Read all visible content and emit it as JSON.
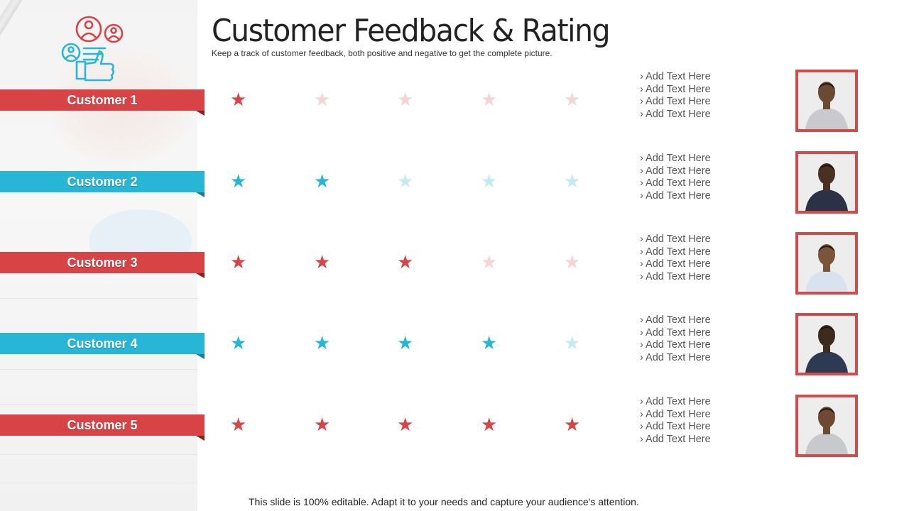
{
  "title": "Customer Feedback & Rating",
  "subtitle": "Keep a track of customer feedback, both positive and negative to get the complete picture.",
  "footer": "This slide is 100% editable. Adapt it to your needs and capture your audience's attention.",
  "colors": {
    "red": "#d84445",
    "red_faded": "#f5d4d4",
    "blue": "#27b6d5",
    "blue_faded": "#c4e9f3",
    "photo_border": "#d24b4b"
  },
  "icons": {
    "logo": "customer-feedback-thumbs-up-icon",
    "star": "star-icon",
    "bullet": "›"
  },
  "customers": [
    {
      "label": "Customer 1",
      "color": "red",
      "rating": 1,
      "max_rating": 5,
      "points": [
        "› Add Text Here",
        "› Add Text Here",
        "› Add Text Here",
        "› Add Text Here"
      ]
    },
    {
      "label": "Customer 2",
      "color": "blue",
      "rating": 2,
      "max_rating": 5,
      "points": [
        "› Add Text Here",
        "› Add Text Here",
        "› Add Text Here",
        "› Add Text Here"
      ]
    },
    {
      "label": "Customer 3",
      "color": "red",
      "rating": 3,
      "max_rating": 5,
      "points": [
        "› Add Text Here",
        "› Add Text Here",
        "› Add Text Here",
        "› Add Text Here"
      ]
    },
    {
      "label": "Customer 4",
      "color": "blue",
      "rating": 4,
      "max_rating": 5,
      "points": [
        "› Add Text Here",
        "› Add Text Here",
        "› Add Text Here",
        "› Add Text Here"
      ]
    },
    {
      "label": "Customer 5",
      "color": "red",
      "rating": 5,
      "max_rating": 5,
      "points": [
        "› Add Text Here",
        "› Add Text Here",
        "› Add Text Here",
        "› Add Text Here"
      ]
    }
  ]
}
